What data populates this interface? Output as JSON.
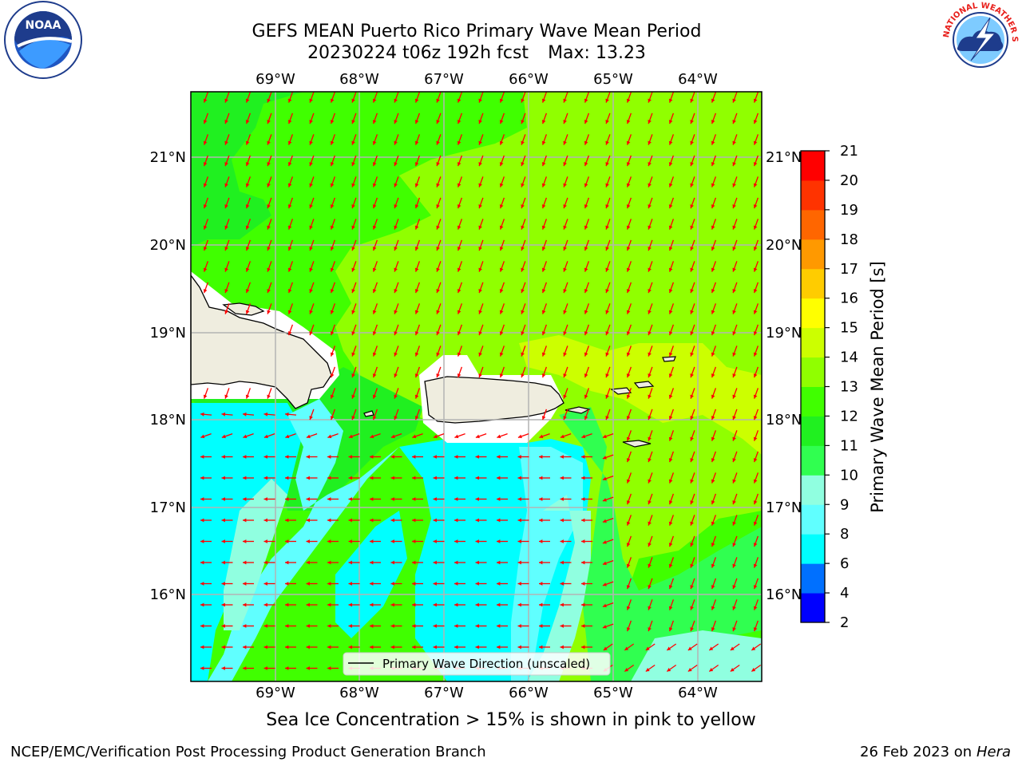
{
  "header": {
    "title_line1": "GEFS MEAN Puerto Rico Primary Wave Mean Period",
    "title_line2": "20230224 t06z 192h fcst",
    "max_label": "Max: 13.23"
  },
  "map": {
    "lon_labels": [
      "69°W",
      "68°W",
      "67°W",
      "66°W",
      "65°W",
      "64°W"
    ],
    "lat_labels": [
      "21°N",
      "20°N",
      "19°N",
      "18°N",
      "17°N",
      "16°N"
    ],
    "legend_label": "Primary Wave Direction (unscaled)",
    "arrow_color": "#ff0000",
    "land_color": "#efeddf"
  },
  "colorbar": {
    "label": "Primary Wave Mean Period [s]",
    "ticks": [
      "2",
      "4",
      "6",
      "8",
      "9",
      "10",
      "11",
      "12",
      "13",
      "14",
      "15",
      "16",
      "17",
      "18",
      "19",
      "20",
      "21"
    ],
    "colors": [
      "#0000ff",
      "#0070ff",
      "#00ffff",
      "#60ffff",
      "#90ffe0",
      "#30ff50",
      "#20f020",
      "#40ff00",
      "#90ff00",
      "#ccff00",
      "#ffff00",
      "#ffcc00",
      "#ff9900",
      "#ff6600",
      "#ff3300",
      "#ff0000"
    ]
  },
  "caption": "Sea Ice Concentration > 15% is shown in pink to yellow",
  "footer": {
    "left": "NCEP/EMC/Verification Post Processing Product Generation Branch",
    "date": "26 Feb 2023 on",
    "host": "Hera"
  },
  "logos": {
    "noaa_text": "NOAA",
    "nws_text": "NATIONAL WEATHER SERVICE"
  }
}
